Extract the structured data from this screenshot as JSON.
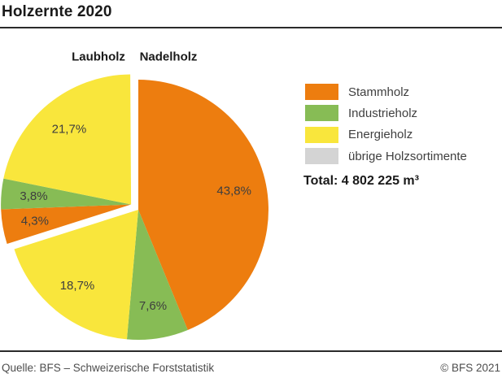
{
  "header": {
    "title": "Holzernte 2020"
  },
  "chart_data": {
    "type": "pie",
    "title": "Holzernte 2020",
    "unit": "percent",
    "direction": "clockwise",
    "start_angle_deg": 0,
    "group_labels": [
      "Laubholz",
      "Nadelholz"
    ],
    "slices": [
      {
        "group": "Nadelholz",
        "category": "Stammholz",
        "value": 43.8,
        "label": "43,8%",
        "color": "#ED7D0F",
        "exploded": false
      },
      {
        "group": "Nadelholz",
        "category": "Industrieholz",
        "value": 7.6,
        "label": "7,6%",
        "color": "#87BC55",
        "exploded": false
      },
      {
        "group": "Nadelholz",
        "category": "Energieholz",
        "value": 18.7,
        "label": "18,7%",
        "color": "#F9E63C",
        "exploded": false
      },
      {
        "group": "Laubholz",
        "category": "Stammholz",
        "value": 4.3,
        "label": "4,3%",
        "color": "#ED7D0F",
        "exploded": true
      },
      {
        "group": "Laubholz",
        "category": "Industrieholz",
        "value": 3.8,
        "label": "3,8%",
        "color": "#87BC55",
        "exploded": true
      },
      {
        "group": "Laubholz",
        "category": "Energieholz",
        "value": 21.7,
        "label": "21,7%",
        "color": "#F9E63C",
        "exploded": true
      }
    ],
    "legend": [
      {
        "label": "Stammholz",
        "color": "#ED7D0F"
      },
      {
        "label": "Industrieholz",
        "color": "#87BC55"
      },
      {
        "label": "Energieholz",
        "color": "#F9E63C"
      },
      {
        "label": "übrige Holzsortimente",
        "color": "#D4D4D4"
      }
    ],
    "legend_position": "right",
    "total_label": "Total: 4 802 225 m³"
  },
  "footer": {
    "source": "Quelle: BFS – Schweizerische Forststatistik",
    "copyright": "© BFS 2021"
  }
}
